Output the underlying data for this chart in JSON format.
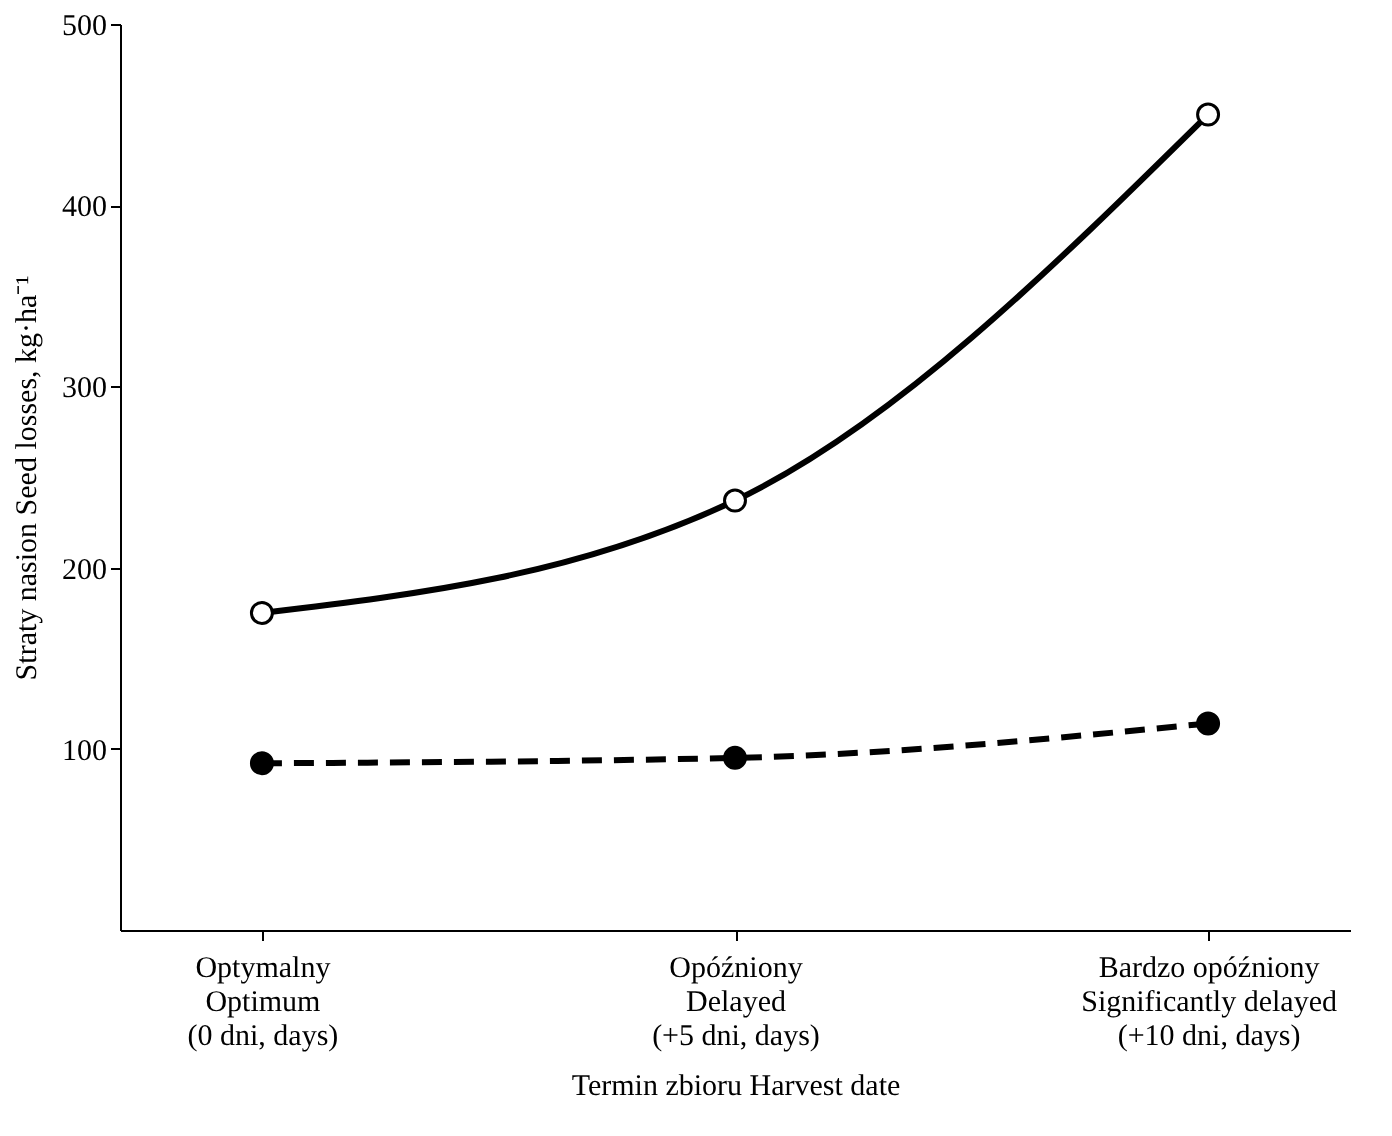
{
  "chart_data": {
    "type": "line",
    "xlabel": "Termin zbioru  Harvest date",
    "ylabel": "Straty nasion  Seed losses, kg·ha⁻¹",
    "categories": [
      "Optymalny\nOptimum\n(0 dni, days)",
      "Opóźniony\nDelayed\n(+5 dni, days)",
      "Bardzo opóźniony\nSignificantly delayed\n(+10 dni, days)"
    ],
    "series": [
      {
        "color": "#000000",
        "values": [
          175,
          237,
          450
        ],
        "line_style": "solid"
      },
      {
        "color": "#000000",
        "values": [
          92,
          95,
          114
        ],
        "line_style": "dashed"
      }
    ],
    "ylim": [
      0,
      500
    ],
    "yticks": [
      100,
      200,
      300,
      400,
      500
    ],
    "marker": "circle",
    "grid": false
  }
}
